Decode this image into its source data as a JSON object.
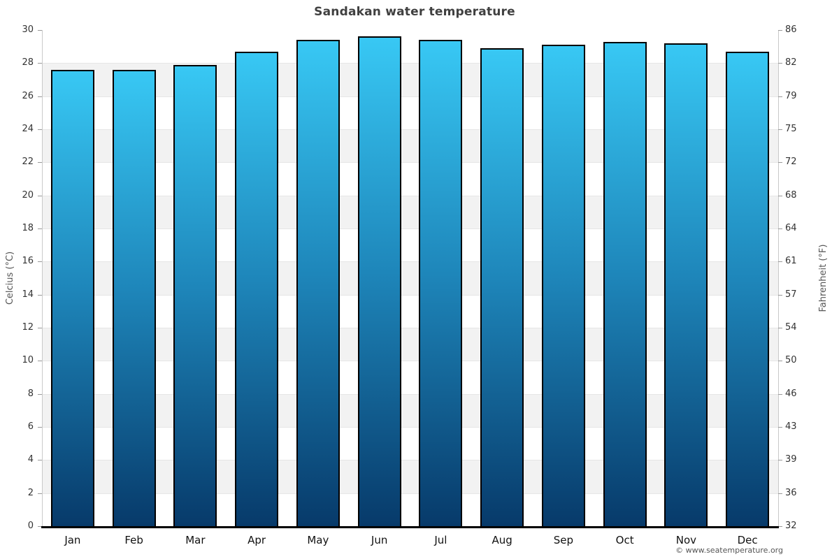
{
  "watermark": "© www.seatemperature.org",
  "chart_data": {
    "type": "bar",
    "title": "Sandakan water temperature",
    "categories": [
      "Jan",
      "Feb",
      "Mar",
      "Apr",
      "May",
      "Jun",
      "Jul",
      "Aug",
      "Sep",
      "Oct",
      "Nov",
      "Dec"
    ],
    "series": [
      {
        "name": "Water temperature",
        "unit": "°C",
        "values": [
          27.6,
          27.6,
          27.9,
          28.7,
          29.4,
          29.6,
          29.4,
          28.9,
          29.1,
          29.3,
          29.2,
          28.7
        ]
      }
    ],
    "values_fahrenheit": [
      81.7,
      81.7,
      82.2,
      83.7,
      84.9,
      85.3,
      84.9,
      84.0,
      84.4,
      84.7,
      84.6,
      83.7
    ],
    "xlabel": "",
    "ylabel_left": "Celcius (°C)",
    "ylabel_right": "Fahrenheit (°F)",
    "ylim_celsius": [
      0,
      30
    ],
    "yticks_celsius": [
      30,
      28,
      26,
      24,
      22,
      20,
      18,
      16,
      14,
      12,
      10,
      8,
      6,
      4,
      2,
      0
    ],
    "yticks_fahrenheit": [
      86,
      82,
      79,
      75,
      72,
      68,
      64,
      61,
      57,
      54,
      50,
      46,
      43,
      39,
      36,
      32
    ],
    "grid": "alternating-horizontal-bands",
    "legend": "none",
    "colors": {
      "bar_gradient_top": "#38c8f4",
      "bar_gradient_mid": "#1e86ba",
      "bar_gradient_bottom": "#073a6a",
      "bar_border": "#000000",
      "band_shade": "#f2f2f2",
      "band_plain": "#ffffff",
      "gridline": "#e6e6e6",
      "axis_line": "#c9c9c9",
      "x_axis_line": "#000000",
      "tick": "#999999",
      "title_text": "#404040",
      "tick_text": "#333333",
      "axis_title_text": "#555555",
      "watermark_text": "#555555"
    }
  }
}
